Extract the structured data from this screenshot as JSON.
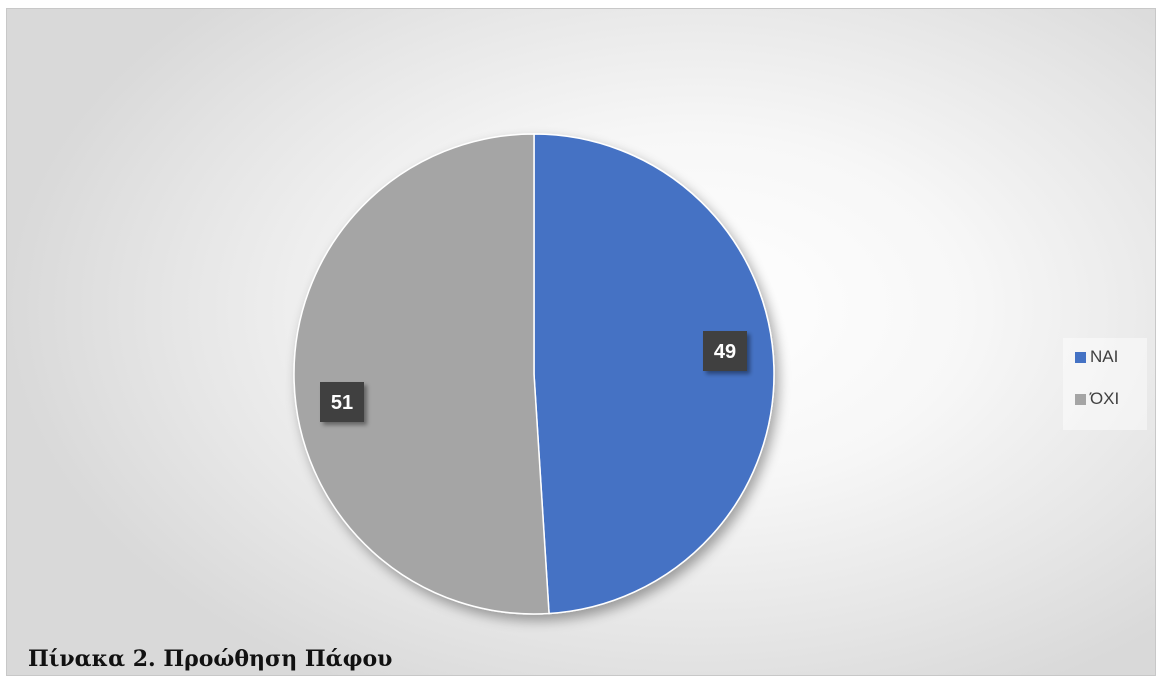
{
  "caption": "Πίνακα 2. Προώθηση Πάφου",
  "chart_data": {
    "type": "pie",
    "title": "",
    "legend_position": "right",
    "series": [
      {
        "name": "ΝΑΙ",
        "value": 49,
        "color": "#4472C4"
      },
      {
        "name": "ΌΧΙ",
        "value": 51,
        "color": "#A5A5A5"
      }
    ],
    "data_label_style": {
      "background": "#404040",
      "color": "#ffffff"
    }
  }
}
